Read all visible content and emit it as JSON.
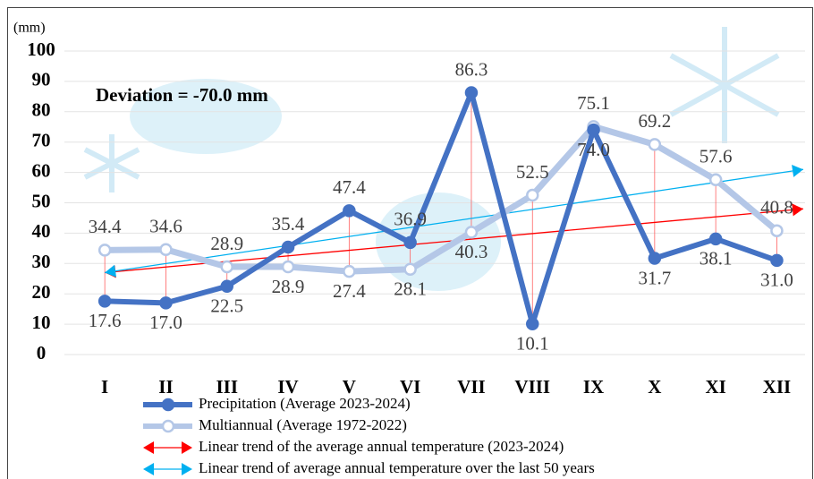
{
  "chart_data": {
    "type": "line",
    "y_label": "(mm)",
    "annotation": "Deviation = -70.0 mm",
    "categories": [
      "I",
      "II",
      "III",
      "IV",
      "V",
      "VI",
      "VII",
      "VIII",
      "IX",
      "X",
      "XI",
      "XII"
    ],
    "series": [
      {
        "name": "Precipitation (Average 2023-2024)",
        "color": "#4472c4",
        "values": [
          17.6,
          17,
          22.5,
          35.4,
          47.4,
          36.9,
          86.3,
          10.1,
          74,
          31.7,
          38.1,
          31
        ],
        "value_labels": [
          "17.6",
          "17.0",
          "22.5",
          "35.4",
          "47.4",
          "36.9",
          "86.3",
          "10.1",
          "74.0",
          "31.7",
          "38.1",
          "31.0"
        ]
      },
      {
        "name": "Multiannual (Average 1972-2022)",
        "color": "#b4c7e7",
        "values": [
          34.4,
          34.6,
          28.9,
          28.9,
          27.4,
          28.1,
          40.3,
          52.5,
          75.1,
          69.2,
          57.6,
          40.8
        ],
        "value_labels": [
          "34.4",
          "34.6",
          "28.9",
          "28.9",
          "27.4",
          "28.1",
          "40.3",
          "52.5",
          "75.1",
          "69.2",
          "57.6",
          "40.8"
        ]
      }
    ],
    "trends": [
      {
        "name": "Linear trend of the average annual temperature (2023-2024)",
        "color": "#ff0000",
        "values": [
          27,
          48
        ]
      },
      {
        "name": "Linear trend of average annual temperature over the last 50 years",
        "color": "#00b0f0",
        "values": [
          27,
          61
        ]
      }
    ],
    "ylim": [
      0,
      100
    ],
    "yticks": [
      0,
      10,
      20,
      30,
      40,
      50,
      60,
      70,
      80,
      90,
      100
    ],
    "grid": true
  }
}
